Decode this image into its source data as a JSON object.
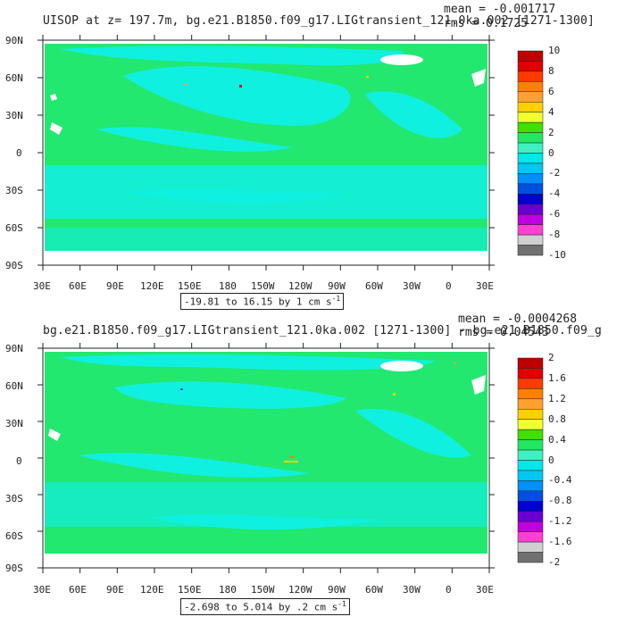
{
  "panels": [
    {
      "title": "UISOP at z= 197.7m, bg.e21.B1850.f09_g17.LIGtransient_121.0ka.002 [1271-1300]",
      "mean": "mean = -0.001717",
      "rms": "rms = 0.1725",
      "range_text": "-19.81 to 16.15 by 1 cm s",
      "range_sup": "-1",
      "colorbar": {
        "labels": [
          "10",
          "8",
          "6",
          "4",
          "2",
          "0",
          "-2",
          "-4",
          "-6",
          "-8",
          "-10"
        ],
        "colors": [
          "#c00000",
          "#e00000",
          "#ff3a00",
          "#ff8000",
          "#ffa030",
          "#ffd000",
          "#f0ff30",
          "#40e000",
          "#20e860",
          "#40f0c0",
          "#00e8e8",
          "#00c8f0",
          "#0090ff",
          "#0050e0",
          "#0000d0",
          "#6a00d0",
          "#c000e0",
          "#ff40d0",
          "#d0d0d0",
          "#707070"
        ]
      }
    },
    {
      "title": "bg.e21.B1850.f09_g17.LIGtransient_121.0ka.002 [1271-1300] - bg.e21.B1850.f09_g",
      "mean": "mean = -0.0004268",
      "rms": "rms = 0.04543",
      "range_text": "-2.698 to 5.014 by .2 cm s",
      "range_sup": "-1",
      "colorbar": {
        "labels": [
          "2",
          "1.6",
          "1.2",
          "0.8",
          "0.4",
          "0",
          "-0.4",
          "-0.8",
          "-1.2",
          "-1.6",
          "-2"
        ],
        "colors": [
          "#c00000",
          "#e00000",
          "#ff3a00",
          "#ff8000",
          "#ffa030",
          "#ffd000",
          "#f0ff30",
          "#40e000",
          "#20e860",
          "#40f0c0",
          "#00e8e8",
          "#00c8f0",
          "#0090ff",
          "#0050e0",
          "#0000d0",
          "#6a00d0",
          "#c000e0",
          "#ff40d0",
          "#d0d0d0",
          "#707070"
        ]
      }
    }
  ],
  "axes": {
    "lat_labels": [
      "90N",
      "60N",
      "30N",
      "0",
      "30S",
      "60S",
      "90S"
    ],
    "lon_labels": [
      "30E",
      "60E",
      "90E",
      "120E",
      "150E",
      "180",
      "150W",
      "120W",
      "90W",
      "60W",
      "30W",
      "0",
      "30E"
    ]
  },
  "colors": {
    "ocean_main": "#22e870",
    "ocean_alt": "#10f0e0",
    "land": "#ffffff",
    "frame": "#222222"
  }
}
